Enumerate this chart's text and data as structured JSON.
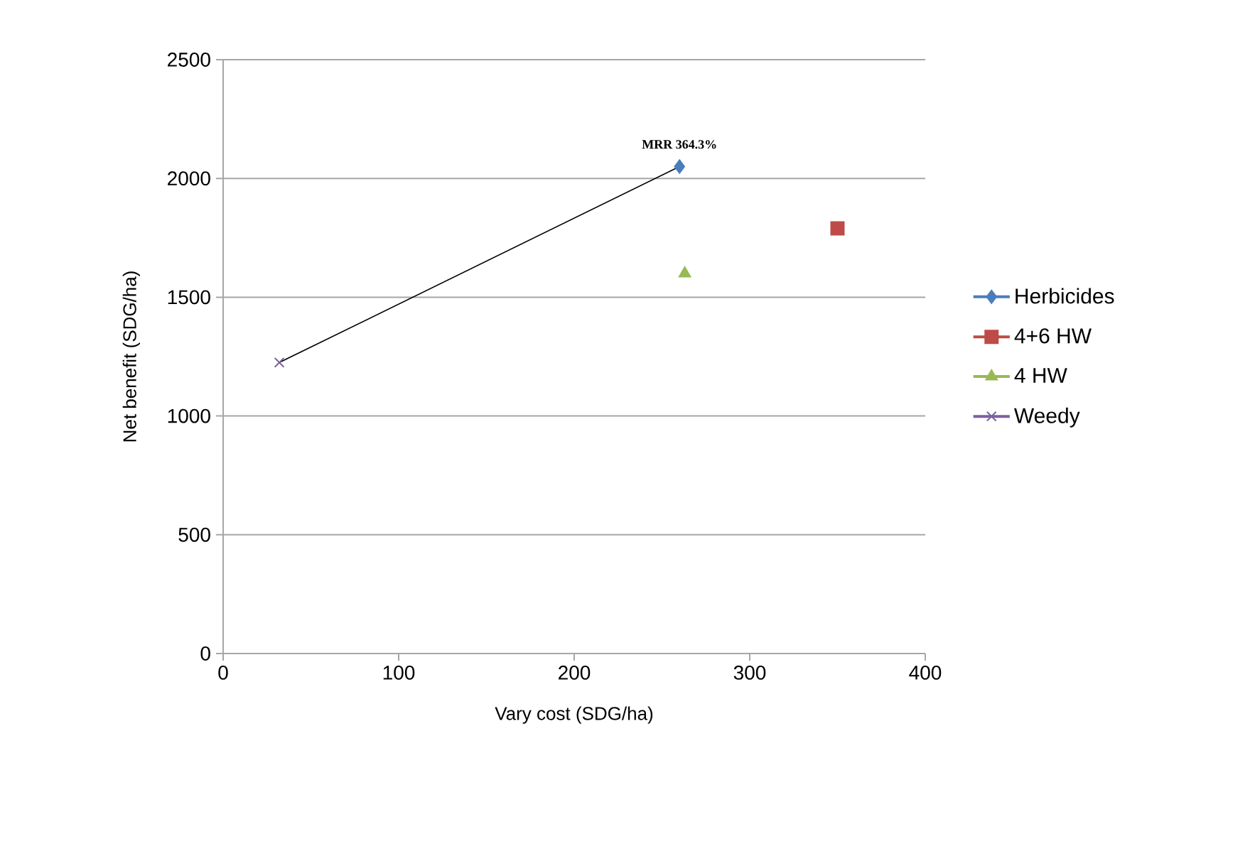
{
  "chart_data": {
    "type": "scatter",
    "xlabel": "Vary cost (SDG/ha)",
    "ylabel": "Net benefit (SDG/ha)",
    "xlim": [
      0,
      400
    ],
    "xticks": [
      0,
      100,
      200,
      300,
      400
    ],
    "ylim": [
      0,
      2500
    ],
    "yticks": [
      0,
      500,
      1000,
      1500,
      2000,
      2500
    ],
    "grid": "y",
    "legend": "right",
    "annotations": [
      {
        "text": "MRR 364.3%",
        "x": 260,
        "y": 2050
      }
    ],
    "series": [
      {
        "type": "line",
        "color": "#000000",
        "x": [
          32,
          260
        ],
        "values": [
          1225,
          2050
        ],
        "marker": "none"
      },
      {
        "name": "Herbicides",
        "color": "#4a7ebb",
        "x": [
          260
        ],
        "values": [
          2050
        ],
        "marker": "diamond"
      },
      {
        "name": "4+6  HW",
        "color": "#be4b48",
        "x": [
          350
        ],
        "values": [
          1790
        ],
        "marker": "square"
      },
      {
        "name": "4 HW",
        "color": "#98b954",
        "x": [
          263
        ],
        "values": [
          1600
        ],
        "marker": "triangle"
      },
      {
        "name": "Weedy",
        "color": "#7d60a0",
        "x": [
          32
        ],
        "values": [
          1225
        ],
        "marker": "cross"
      }
    ]
  }
}
